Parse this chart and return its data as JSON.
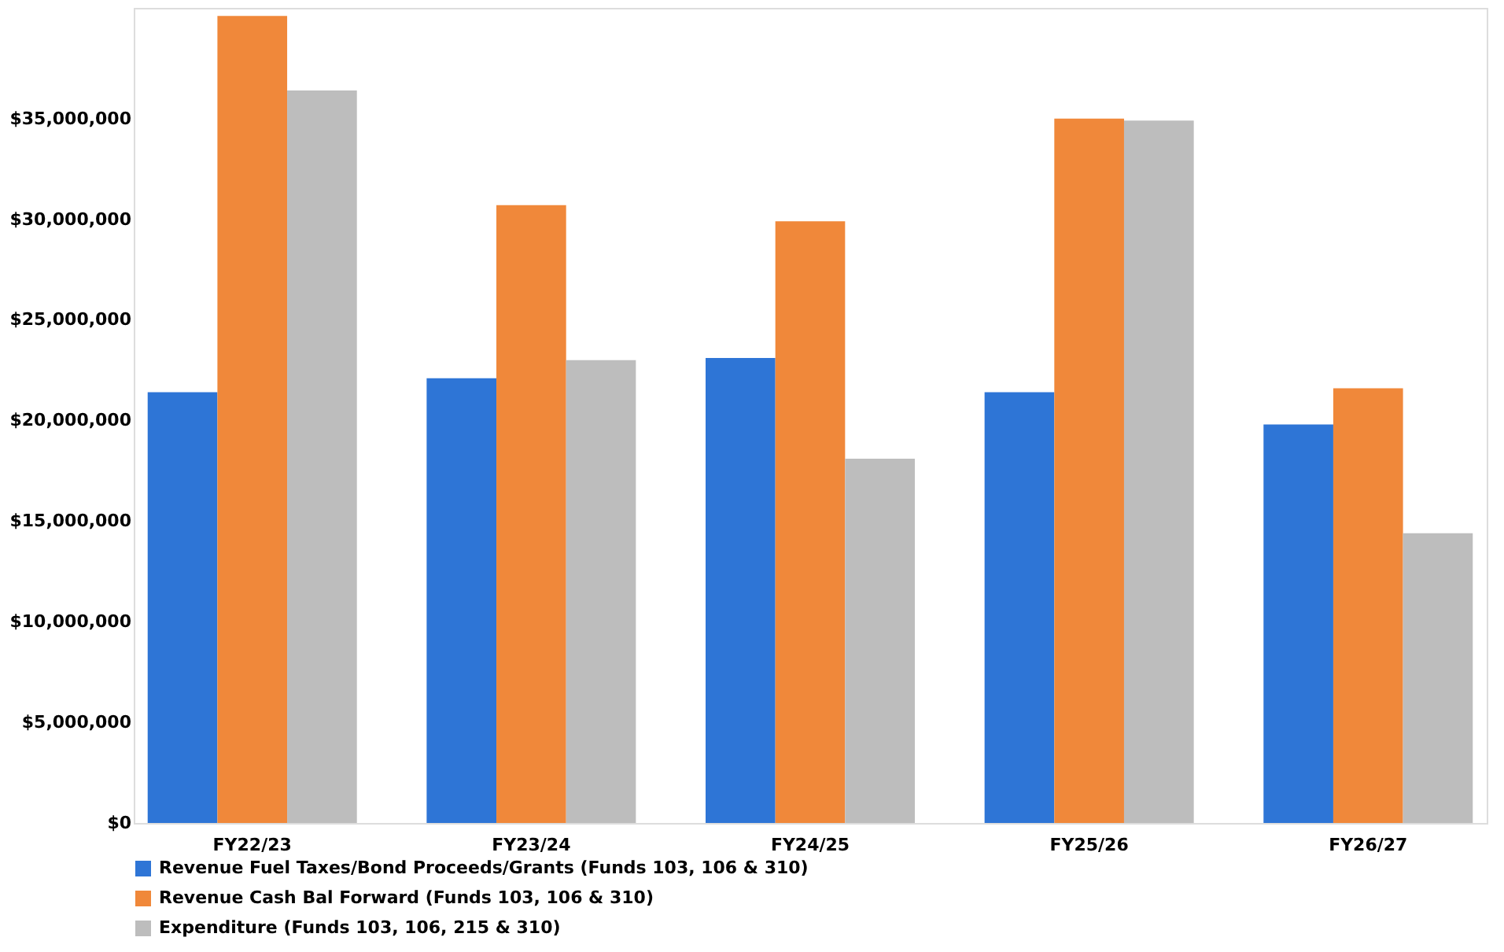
{
  "chart_data": {
    "type": "bar",
    "categories": [
      "FY22/23",
      "FY23/24",
      "FY24/25",
      "FY25/26",
      "FY26/27"
    ],
    "series": [
      {
        "name": "Revenue Fuel Taxes/Bond Proceeds/Grants (Funds 103, 106 & 310)",
        "color": "#2e75d6",
        "values": [
          21400000,
          22100000,
          23100000,
          21400000,
          19800000
        ]
      },
      {
        "name": "Revenue Cash Bal Forward (Funds 103, 106 & 310)",
        "color": "#f0883a",
        "values": [
          40100000,
          30700000,
          29900000,
          35000000,
          21600000
        ]
      },
      {
        "name": "Expenditure (Funds 103, 106, 215 & 310)",
        "color": "#bdbdbd",
        "values": [
          36400000,
          23000000,
          18100000,
          34900000,
          14400000
        ]
      }
    ],
    "ylim": [
      0,
      40500000
    ],
    "yticks": [
      {
        "value": 0,
        "label": "$0"
      },
      {
        "value": 5000000,
        "label": "$5,000,000"
      },
      {
        "value": 10000000,
        "label": "$10,000,000"
      },
      {
        "value": 15000000,
        "label": "$15,000,000"
      },
      {
        "value": 20000000,
        "label": "$20,000,000"
      },
      {
        "value": 25000000,
        "label": "$25,000,000"
      },
      {
        "value": 30000000,
        "label": "$30,000,000"
      },
      {
        "value": 35000000,
        "label": "$35,000,000"
      }
    ],
    "grid": false,
    "legend": "bottom"
  }
}
